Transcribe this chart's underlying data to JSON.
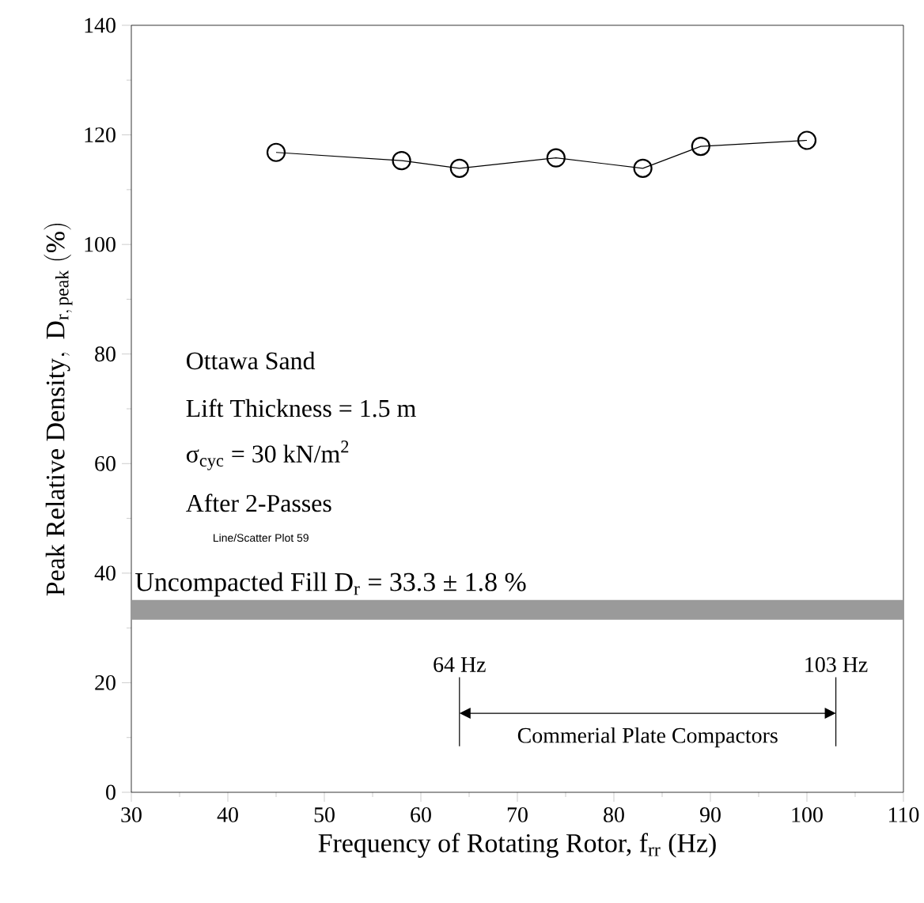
{
  "chart_data": {
    "type": "line",
    "xlabel": "Frequency of Rotating Rotor, f$_{rr}$ (Hz)",
    "ylabel": "\\mathrm{Peak\\ Relative\\ Density,\\ D_{r,\\,peak}\\ (\\%)}",
    "x": [
      45,
      58,
      64,
      74,
      83,
      89,
      100
    ],
    "series": [
      {
        "color": "#000000",
        "values": [
          116.8,
          115.3,
          113.9,
          115.8,
          113.9,
          117.9,
          119.0
        ]
      }
    ],
    "marker": "circle",
    "line_style": "solid",
    "xlim": [
      30,
      110
    ],
    "xticks": [
      30,
      40,
      50,
      60,
      70,
      80,
      90,
      100,
      110
    ],
    "ylim": [
      0,
      140
    ],
    "yticks": [
      0,
      20,
      40,
      60,
      80,
      100,
      120,
      140
    ],
    "bands": [
      {
        "axis": "y",
        "from": 31.5,
        "to": 35.1,
        "label": "Uncompacted Fill D$_{r}$ = 33.3 ± 1.8 %",
        "color": "#9a9a9a"
      }
    ],
    "ref_lines": [
      {
        "axis": "x",
        "value": 64,
        "label": "64 Hz",
        "color": "#000000"
      },
      {
        "axis": "x",
        "value": 103,
        "label": "103 Hz",
        "color": "#000000"
      }
    ],
    "annotations": [
      "Ottawa Sand",
      "Lift Thickness = 1.5 m",
      "σ$_{cyc}$ = 30 kN/m$^{2}$",
      "After 2-Passes",
      "Line/Scatter Plot 59",
      "Commerial Plate Compactors"
    ]
  }
}
